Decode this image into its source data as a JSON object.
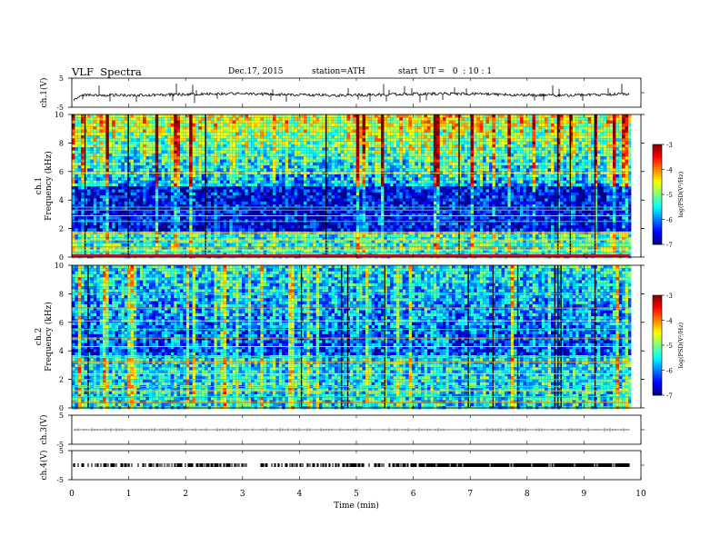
{
  "header": {
    "title": "VLF  Spectra",
    "date": "Dec.17, 2015",
    "station": "station=ATH",
    "start": "start  UT =   0  : 10 : 1"
  },
  "chart_data": [
    {
      "type": "line",
      "id": "ch1-waveform",
      "ylabel": "ch.1(V)",
      "ylim": [
        -5,
        5
      ],
      "yticks": [
        "5",
        "-5"
      ],
      "xlim": [
        0,
        10
      ],
      "baseline": 0,
      "color": "#000000"
    },
    {
      "type": "heatmap",
      "id": "ch1-spectrogram",
      "ylabel": [
        "ch.1",
        "Frequency  (kHz)"
      ],
      "ylim": [
        0,
        10
      ],
      "yticks": [
        "0",
        "2",
        "4",
        "6",
        "8",
        "10"
      ],
      "xlim": [
        0,
        10
      ],
      "data_end_min": 9.8,
      "strong_lines_khz": [
        0.1,
        0.3,
        0.5,
        0.7,
        1.0,
        1.2,
        1.7,
        2.5,
        2.9,
        3.3,
        3.5,
        5.9
      ],
      "colorbar": {
        "label": "log(PSD(V²/Hz)",
        "range": [
          -7,
          -3
        ],
        "ticks": [
          "-3",
          "-4",
          "-5",
          "-6",
          "-7"
        ]
      }
    },
    {
      "type": "heatmap",
      "id": "ch2-spectrogram",
      "ylabel": [
        "ch.2",
        "Frequency  (kHz)"
      ],
      "ylim": [
        0,
        10
      ],
      "yticks": [
        "0",
        "2",
        "4",
        "6",
        "8",
        "10"
      ],
      "xlim": [
        0,
        10
      ],
      "data_end_min": 9.8,
      "strong_lines_khz": [
        0.4,
        0.8,
        1.2,
        1.5,
        2.0,
        2.4,
        3.2,
        3.6,
        4.3,
        4.9,
        5.5,
        6.1,
        7.0,
        8.0
      ],
      "colorbar": {
        "label": "log(PSD(V²/Hz)",
        "range": [
          -7,
          -3
        ],
        "ticks": [
          "-3",
          "-4",
          "-5",
          "-6",
          "-7"
        ]
      }
    },
    {
      "type": "line",
      "id": "ch3-waveform",
      "ylabel": "ch.3(V)",
      "ylim": [
        -5,
        5
      ],
      "yticks": [
        "5",
        "-5"
      ],
      "xlim": [
        0,
        10
      ],
      "baseline": 0,
      "color": "#000000"
    },
    {
      "type": "line",
      "id": "ch4-waveform",
      "ylabel": "ch.4(V)",
      "ylim": [
        -5,
        5
      ],
      "yticks": [
        "5",
        "-5"
      ],
      "xlim": [
        0,
        10
      ],
      "baseline": 0,
      "color": "#000000"
    }
  ],
  "xaxis": {
    "label": "Time  (min)",
    "ticks": [
      "0",
      "1",
      "2",
      "3",
      "4",
      "5",
      "6",
      "7",
      "8",
      "9",
      "10"
    ]
  }
}
